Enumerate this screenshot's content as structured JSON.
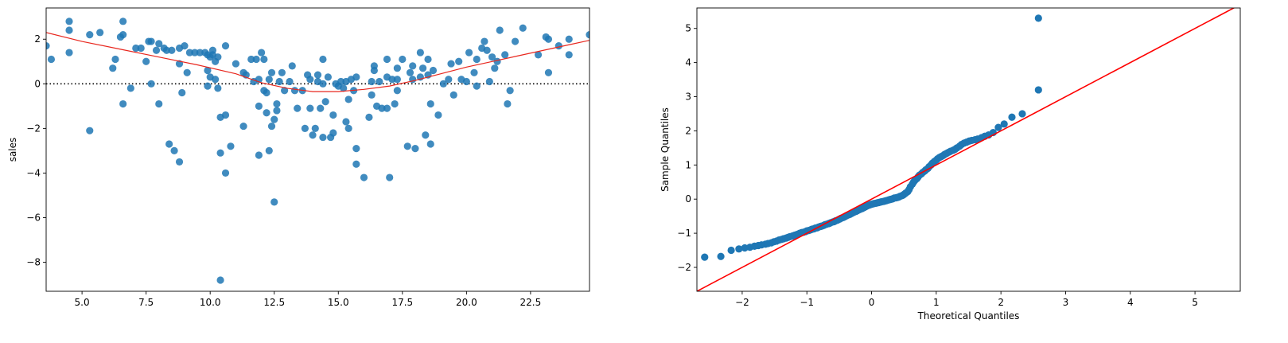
{
  "chart_data": [
    {
      "type": "scatter",
      "title": "",
      "xlabel": "",
      "ylabel": "sales",
      "xlim": [
        3.6,
        24.8
      ],
      "ylim": [
        -9.3,
        3.4
      ],
      "xticks": [
        5.0,
        7.5,
        10.0,
        12.5,
        15.0,
        17.5,
        20.0,
        22.5
      ],
      "xtick_labels": [
        "5.0",
        "7.5",
        "10.0",
        "12.5",
        "15.0",
        "17.5",
        "20.0",
        "22.5"
      ],
      "yticks": [
        2,
        0,
        -2,
        -4,
        -6,
        -8
      ],
      "ytick_labels": [
        "2",
        "0",
        "−2",
        "−4",
        "−6",
        "−8"
      ],
      "grid": false,
      "point_color": "#1f77b4",
      "zero_line": {
        "y": 0,
        "style": "dotted",
        "color": "#000000"
      },
      "trend_line": {
        "color": "#e8271e",
        "x": [
          3.6,
          5.0,
          6.5,
          8.0,
          9.5,
          11.0,
          12.0,
          13.0,
          14.0,
          15.0,
          16.0,
          17.0,
          18.0,
          19.0,
          20.0,
          21.0,
          22.0,
          23.0,
          24.0,
          24.8
        ],
        "y": [
          2.3,
          1.9,
          1.55,
          1.2,
          0.85,
          0.45,
          0.05,
          -0.2,
          -0.35,
          -0.35,
          -0.25,
          -0.1,
          0.15,
          0.45,
          0.75,
          1.0,
          1.25,
          1.5,
          1.75,
          1.95
        ]
      },
      "points": [
        [
          3.6,
          1.7
        ],
        [
          3.8,
          1.1
        ],
        [
          4.5,
          2.8
        ],
        [
          4.5,
          2.4
        ],
        [
          4.5,
          1.4
        ],
        [
          5.3,
          2.2
        ],
        [
          5.3,
          -2.1
        ],
        [
          5.7,
          2.3
        ],
        [
          6.2,
          0.7
        ],
        [
          6.3,
          1.1
        ],
        [
          6.5,
          2.1
        ],
        [
          6.6,
          2.2
        ],
        [
          6.6,
          2.8
        ],
        [
          6.6,
          -0.9
        ],
        [
          6.9,
          -0.2
        ],
        [
          7.1,
          1.6
        ],
        [
          7.3,
          1.6
        ],
        [
          7.5,
          1.0
        ],
        [
          7.6,
          1.9
        ],
        [
          7.7,
          1.9
        ],
        [
          7.7,
          0.0
        ],
        [
          7.9,
          1.5
        ],
        [
          8.0,
          1.8
        ],
        [
          8.0,
          -0.9
        ],
        [
          8.2,
          1.6
        ],
        [
          8.3,
          1.5
        ],
        [
          8.5,
          1.5
        ],
        [
          8.4,
          -2.7
        ],
        [
          8.6,
          -3.0
        ],
        [
          8.8,
          1.6
        ],
        [
          8.8,
          0.9
        ],
        [
          8.8,
          -3.5
        ],
        [
          8.9,
          -0.4
        ],
        [
          9.0,
          1.7
        ],
        [
          9.1,
          0.5
        ],
        [
          9.2,
          1.4
        ],
        [
          9.4,
          1.4
        ],
        [
          9.6,
          1.4
        ],
        [
          9.8,
          1.4
        ],
        [
          9.9,
          1.3
        ],
        [
          9.9,
          0.6
        ],
        [
          9.9,
          -0.1
        ],
        [
          10.0,
          1.2
        ],
        [
          10.0,
          0.3
        ],
        [
          10.1,
          1.3
        ],
        [
          10.1,
          1.5
        ],
        [
          10.2,
          1.0
        ],
        [
          10.3,
          1.2
        ],
        [
          10.2,
          0.2
        ],
        [
          10.3,
          -0.2
        ],
        [
          10.4,
          -1.5
        ],
        [
          10.4,
          -3.1
        ],
        [
          10.4,
          -8.8
        ],
        [
          10.6,
          1.7
        ],
        [
          10.6,
          -1.4
        ],
        [
          10.6,
          -4.0
        ],
        [
          10.8,
          -2.8
        ],
        [
          11.0,
          0.9
        ],
        [
          11.3,
          0.5
        ],
        [
          11.4,
          0.4
        ],
        [
          11.3,
          -1.9
        ],
        [
          11.7,
          0.1
        ],
        [
          11.6,
          1.1
        ],
        [
          11.8,
          1.1
        ],
        [
          11.9,
          0.2
        ],
        [
          11.9,
          -1.0
        ],
        [
          11.9,
          -3.2
        ],
        [
          12.0,
          1.4
        ],
        [
          12.1,
          1.1
        ],
        [
          12.1,
          -0.3
        ],
        [
          12.2,
          -0.4
        ],
        [
          12.2,
          -1.3
        ],
        [
          12.3,
          0.2
        ],
        [
          12.3,
          -3.0
        ],
        [
          12.4,
          0.5
        ],
        [
          12.4,
          -1.9
        ],
        [
          12.5,
          -5.3
        ],
        [
          12.5,
          -1.6
        ],
        [
          12.6,
          -1.2
        ],
        [
          12.6,
          -0.9
        ],
        [
          12.7,
          0.1
        ],
        [
          12.8,
          0.5
        ],
        [
          12.9,
          -0.3
        ],
        [
          13.1,
          0.1
        ],
        [
          13.2,
          0.8
        ],
        [
          13.3,
          -0.3
        ],
        [
          13.4,
          -1.1
        ],
        [
          13.6,
          -0.3
        ],
        [
          13.7,
          -2.0
        ],
        [
          13.8,
          0.4
        ],
        [
          13.9,
          0.2
        ],
        [
          13.9,
          -1.1
        ],
        [
          14.0,
          -2.3
        ],
        [
          14.1,
          -2.0
        ],
        [
          14.2,
          0.4
        ],
        [
          14.2,
          0.1
        ],
        [
          14.3,
          -1.1
        ],
        [
          14.4,
          0.0
        ],
        [
          14.4,
          -2.4
        ],
        [
          14.4,
          1.1
        ],
        [
          14.5,
          -0.8
        ],
        [
          14.6,
          0.3
        ],
        [
          14.7,
          -2.4
        ],
        [
          14.8,
          -1.4
        ],
        [
          14.8,
          -2.2
        ],
        [
          14.9,
          0.0
        ],
        [
          15.0,
          -0.1
        ],
        [
          15.1,
          0.1
        ],
        [
          15.2,
          -0.2
        ],
        [
          15.3,
          -1.7
        ],
        [
          15.3,
          0.1
        ],
        [
          15.4,
          -0.7
        ],
        [
          15.4,
          -2.0
        ],
        [
          15.5,
          0.2
        ],
        [
          15.6,
          -0.3
        ],
        [
          15.7,
          0.3
        ],
        [
          15.7,
          -2.9
        ],
        [
          15.7,
          -3.6
        ],
        [
          16.0,
          -4.2
        ],
        [
          16.2,
          -1.5
        ],
        [
          16.3,
          0.1
        ],
        [
          16.3,
          -0.5
        ],
        [
          16.4,
          0.8
        ],
        [
          16.4,
          0.6
        ],
        [
          16.5,
          -1.0
        ],
        [
          16.6,
          0.1
        ],
        [
          16.7,
          -1.1
        ],
        [
          16.9,
          1.1
        ],
        [
          16.9,
          0.3
        ],
        [
          16.9,
          -1.1
        ],
        [
          17.0,
          -4.2
        ],
        [
          17.1,
          0.2
        ],
        [
          17.2,
          -0.9
        ],
        [
          17.3,
          0.2
        ],
        [
          17.3,
          -0.3
        ],
        [
          17.3,
          0.7
        ],
        [
          17.5,
          1.1
        ],
        [
          17.7,
          -2.8
        ],
        [
          17.8,
          0.5
        ],
        [
          17.9,
          0.8
        ],
        [
          17.9,
          0.2
        ],
        [
          18.0,
          -2.9
        ],
        [
          18.2,
          1.4
        ],
        [
          18.2,
          0.3
        ],
        [
          18.3,
          0.7
        ],
        [
          18.4,
          -2.3
        ],
        [
          18.5,
          1.1
        ],
        [
          18.5,
          0.4
        ],
        [
          18.6,
          -0.9
        ],
        [
          18.6,
          -2.7
        ],
        [
          18.7,
          0.6
        ],
        [
          18.9,
          -1.4
        ],
        [
          19.1,
          0.0
        ],
        [
          19.3,
          0.2
        ],
        [
          19.4,
          0.9
        ],
        [
          19.5,
          -0.5
        ],
        [
          19.7,
          1.0
        ],
        [
          19.8,
          0.2
        ],
        [
          20.0,
          0.1
        ],
        [
          20.1,
          1.4
        ],
        [
          20.3,
          0.5
        ],
        [
          20.4,
          1.1
        ],
        [
          20.4,
          -0.1
        ],
        [
          20.6,
          1.6
        ],
        [
          20.7,
          1.9
        ],
        [
          20.8,
          1.5
        ],
        [
          20.9,
          0.1
        ],
        [
          21.0,
          1.2
        ],
        [
          21.1,
          0.7
        ],
        [
          21.2,
          1.0
        ],
        [
          21.3,
          2.4
        ],
        [
          21.5,
          1.3
        ],
        [
          21.6,
          -0.9
        ],
        [
          21.7,
          -0.3
        ],
        [
          21.9,
          1.9
        ],
        [
          22.2,
          2.5
        ],
        [
          22.8,
          1.3
        ],
        [
          23.1,
          2.1
        ],
        [
          23.2,
          2.0
        ],
        [
          23.2,
          0.5
        ],
        [
          23.6,
          1.7
        ],
        [
          24.0,
          2.0
        ],
        [
          24.0,
          1.3
        ],
        [
          24.8,
          2.2
        ]
      ]
    },
    {
      "type": "scatter",
      "title": "",
      "xlabel": "Theoretical Quantiles",
      "ylabel": "Sample Quantiles",
      "xlim": [
        -2.7,
        5.7
      ],
      "ylim": [
        -2.7,
        5.6
      ],
      "xticks": [
        -2,
        -1,
        0,
        1,
        2,
        3,
        4,
        5
      ],
      "xtick_labels": [
        "−2",
        "−1",
        "0",
        "1",
        "2",
        "3",
        "4",
        "5"
      ],
      "yticks": [
        -2,
        -1,
        0,
        1,
        2,
        3,
        4,
        5
      ],
      "ytick_labels": [
        "−2",
        "−1",
        "0",
        "1",
        "2",
        "3",
        "4",
        "5"
      ],
      "grid": false,
      "point_color": "#1f77b4",
      "reference_line": {
        "color": "#ff0000",
        "x": [
          -2.7,
          5.7
        ],
        "y": [
          -2.7,
          5.7
        ]
      },
      "points": [
        [
          -2.58,
          -1.7
        ],
        [
          -2.33,
          -1.68
        ],
        [
          -2.17,
          -1.5
        ],
        [
          -2.05,
          -1.46
        ],
        [
          -1.96,
          -1.43
        ],
        [
          -1.88,
          -1.41
        ],
        [
          -1.81,
          -1.38
        ],
        [
          -1.75,
          -1.36
        ],
        [
          -1.7,
          -1.34
        ],
        [
          -1.64,
          -1.32
        ],
        [
          -1.6,
          -1.3
        ],
        [
          -1.55,
          -1.28
        ],
        [
          -1.51,
          -1.25
        ],
        [
          -1.47,
          -1.23
        ],
        [
          -1.43,
          -1.2
        ],
        [
          -1.39,
          -1.18
        ],
        [
          -1.36,
          -1.16
        ],
        [
          -1.32,
          -1.14
        ],
        [
          -1.29,
          -1.12
        ],
        [
          -1.26,
          -1.1
        ],
        [
          -1.22,
          -1.08
        ],
        [
          -1.19,
          -1.06
        ],
        [
          -1.16,
          -1.04
        ],
        [
          -1.13,
          -1.02
        ],
        [
          -1.11,
          -1.0
        ],
        [
          -1.08,
          -0.98
        ],
        [
          -1.05,
          -0.97
        ],
        [
          -1.02,
          -0.95
        ],
        [
          -1.0,
          -0.93
        ],
        [
          -0.97,
          -0.92
        ],
        [
          -0.94,
          -0.9
        ],
        [
          -0.92,
          -0.88
        ],
        [
          -0.89,
          -0.87
        ],
        [
          -0.87,
          -0.85
        ],
        [
          -0.84,
          -0.84
        ],
        [
          -0.82,
          -0.82
        ],
        [
          -0.79,
          -0.8
        ],
        [
          -0.77,
          -0.79
        ],
        [
          -0.74,
          -0.77
        ],
        [
          -0.72,
          -0.75
        ],
        [
          -0.7,
          -0.74
        ],
        [
          -0.67,
          -0.72
        ],
        [
          -0.65,
          -0.71
        ],
        [
          -0.63,
          -0.69
        ],
        [
          -0.6,
          -0.67
        ],
        [
          -0.58,
          -0.66
        ],
        [
          -0.56,
          -0.64
        ],
        [
          -0.53,
          -0.62
        ],
        [
          -0.51,
          -0.6
        ],
        [
          -0.49,
          -0.58
        ],
        [
          -0.47,
          -0.56
        ],
        [
          -0.44,
          -0.54
        ],
        [
          -0.42,
          -0.52
        ],
        [
          -0.4,
          -0.5
        ],
        [
          -0.38,
          -0.48
        ],
        [
          -0.35,
          -0.46
        ],
        [
          -0.33,
          -0.44
        ],
        [
          -0.31,
          -0.42
        ],
        [
          -0.29,
          -0.4
        ],
        [
          -0.27,
          -0.38
        ],
        [
          -0.24,
          -0.36
        ],
        [
          -0.22,
          -0.34
        ],
        [
          -0.2,
          -0.32
        ],
        [
          -0.18,
          -0.3
        ],
        [
          -0.15,
          -0.28
        ],
        [
          -0.13,
          -0.26
        ],
        [
          -0.11,
          -0.24
        ],
        [
          -0.09,
          -0.22
        ],
        [
          -0.07,
          -0.2
        ],
        [
          -0.04,
          -0.18
        ],
        [
          -0.02,
          -0.16
        ],
        [
          0.0,
          -0.15
        ],
        [
          0.02,
          -0.14
        ],
        [
          0.04,
          -0.13
        ],
        [
          0.07,
          -0.12
        ],
        [
          0.09,
          -0.11
        ],
        [
          0.11,
          -0.1
        ],
        [
          0.13,
          -0.09
        ],
        [
          0.15,
          -0.08
        ],
        [
          0.18,
          -0.07
        ],
        [
          0.2,
          -0.06
        ],
        [
          0.22,
          -0.05
        ],
        [
          0.24,
          -0.04
        ],
        [
          0.27,
          -0.02
        ],
        [
          0.29,
          -0.01
        ],
        [
          0.31,
          0.0
        ],
        [
          0.33,
          0.01
        ],
        [
          0.35,
          0.03
        ],
        [
          0.38,
          0.04
        ],
        [
          0.4,
          0.05
        ],
        [
          0.42,
          0.06
        ],
        [
          0.44,
          0.08
        ],
        [
          0.47,
          0.1
        ],
        [
          0.49,
          0.12
        ],
        [
          0.51,
          0.15
        ],
        [
          0.53,
          0.18
        ],
        [
          0.56,
          0.22
        ],
        [
          0.58,
          0.28
        ],
        [
          0.6,
          0.36
        ],
        [
          0.63,
          0.44
        ],
        [
          0.65,
          0.5
        ],
        [
          0.67,
          0.55
        ],
        [
          0.7,
          0.6
        ],
        [
          0.72,
          0.65
        ],
        [
          0.74,
          0.7
        ],
        [
          0.77,
          0.74
        ],
        [
          0.79,
          0.78
        ],
        [
          0.82,
          0.82
        ],
        [
          0.84,
          0.86
        ],
        [
          0.87,
          0.9
        ],
        [
          0.89,
          0.95
        ],
        [
          0.92,
          1.0
        ],
        [
          0.94,
          1.05
        ],
        [
          0.97,
          1.1
        ],
        [
          1.0,
          1.14
        ],
        [
          1.02,
          1.18
        ],
        [
          1.05,
          1.22
        ],
        [
          1.08,
          1.25
        ],
        [
          1.11,
          1.28
        ],
        [
          1.13,
          1.31
        ],
        [
          1.16,
          1.34
        ],
        [
          1.19,
          1.37
        ],
        [
          1.22,
          1.4
        ],
        [
          1.26,
          1.43
        ],
        [
          1.29,
          1.46
        ],
        [
          1.32,
          1.5
        ],
        [
          1.36,
          1.55
        ],
        [
          1.39,
          1.6
        ],
        [
          1.43,
          1.64
        ],
        [
          1.47,
          1.67
        ],
        [
          1.51,
          1.7
        ],
        [
          1.55,
          1.72
        ],
        [
          1.6,
          1.74
        ],
        [
          1.64,
          1.76
        ],
        [
          1.7,
          1.8
        ],
        [
          1.75,
          1.84
        ],
        [
          1.81,
          1.88
        ],
        [
          1.88,
          1.95
        ],
        [
          1.96,
          2.1
        ],
        [
          2.05,
          2.2
        ],
        [
          2.17,
          2.4
        ],
        [
          2.33,
          2.5
        ],
        [
          2.58,
          3.2
        ],
        [
          2.58,
          5.3
        ]
      ]
    }
  ]
}
